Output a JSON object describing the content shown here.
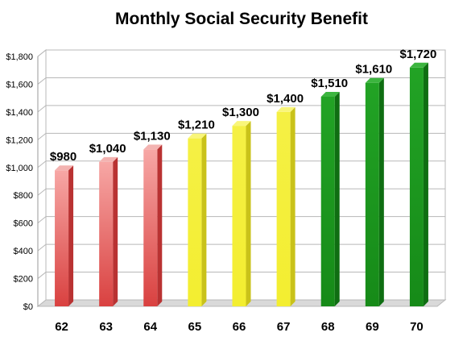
{
  "chart_data": {
    "type": "bar",
    "title": "Monthly Social Security Benefit",
    "categories": [
      "62",
      "63",
      "64",
      "65",
      "66",
      "67",
      "68",
      "69",
      "70"
    ],
    "values": [
      980,
      1040,
      1130,
      1210,
      1300,
      1400,
      1510,
      1610,
      1720
    ],
    "data_labels": [
      "$980",
      "$1,040",
      "$1,130",
      "$1,210",
      "$1,300",
      "$1,400",
      "$1,510",
      "$1,610",
      "$1,720"
    ],
    "y_ticks": [
      0,
      200,
      400,
      600,
      800,
      1000,
      1200,
      1400,
      1600,
      1800
    ],
    "y_tick_labels": [
      "$0",
      "$200",
      "$400",
      "$600",
      "$800",
      "$1,000",
      "$1,200",
      "$1,400",
      "$1,600",
      "$1,800"
    ],
    "ylim": [
      0,
      1800
    ],
    "grid": true,
    "legend": "none",
    "bar_colors": [
      "#e35d5d",
      "#e35d5d",
      "#e35d5d",
      "#f4f13a",
      "#f4f13a",
      "#f4f13a",
      "#1f9a22",
      "#1f9a22",
      "#1f9a22"
    ]
  }
}
